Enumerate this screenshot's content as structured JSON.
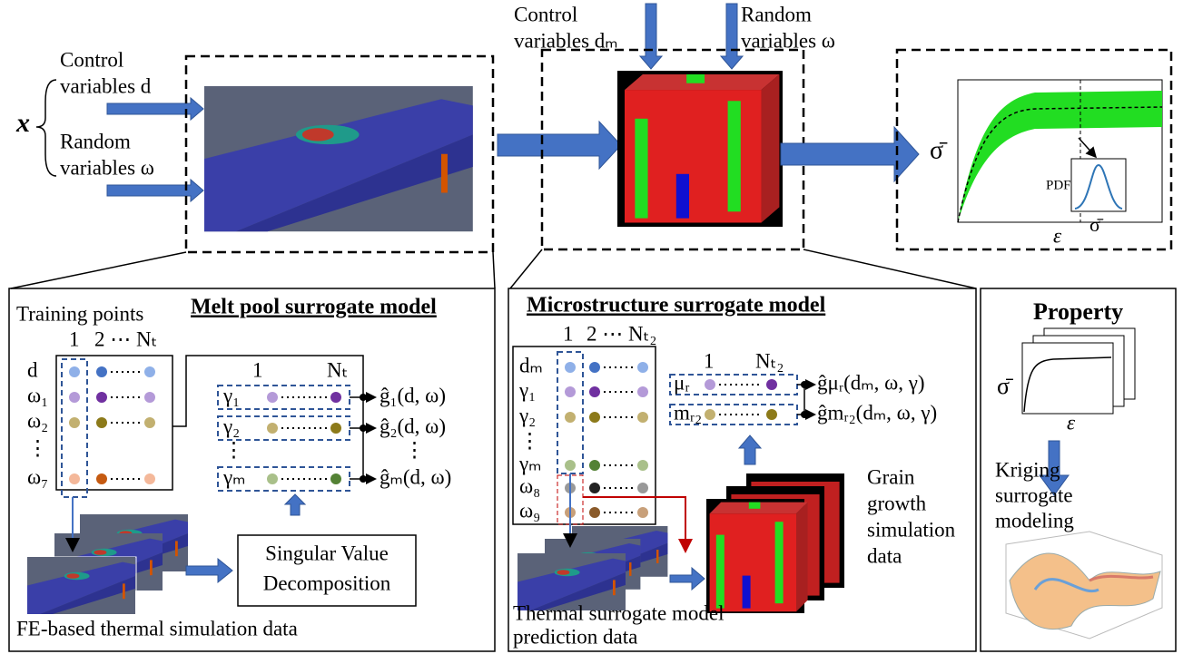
{
  "top": {
    "input_symbol": "x",
    "control_lines": [
      "Control",
      "variables d"
    ],
    "random_lines": [
      "Random",
      "variables ω"
    ],
    "micro_control_lines": [
      "Control",
      "variables dₘ"
    ],
    "micro_random_lines": [
      "Random",
      "variables ω"
    ],
    "property_plot": {
      "y_label": "σ̄",
      "x_label": "ε",
      "inset_y_label": "PDF",
      "inset_x_label": "σ̄"
    }
  },
  "melt_pool_panel": {
    "title": "Melt pool surrogate model",
    "training_points": "Training points",
    "column_headers": [
      "1",
      "2 ⋯ Nₜ"
    ],
    "row_labels": [
      "d",
      "ω₁",
      "ω₂",
      "⋮",
      "ω₇"
    ],
    "basis_headers": [
      "1",
      "Nₜ"
    ],
    "basis_labels": [
      "γ₁",
      "γ₂",
      "⋮",
      "γₘ"
    ],
    "outputs": [
      "ĝ₁(d, ω)",
      "ĝ₂(d, ω)",
      "⋮",
      "ĝₘ(d, ω)"
    ],
    "svd_lines": [
      "Singular Value",
      "Decomposition"
    ],
    "caption": "FE-based thermal simulation data"
  },
  "microstructure_panel": {
    "title": "Microstructure surrogate model",
    "column_headers": [
      "1",
      "2 ⋯ Nₜ₂"
    ],
    "row_labels": [
      "dₘ",
      "γ₁",
      "γ₂",
      "⋮",
      "γₘ",
      "ω₈",
      "ω₉"
    ],
    "basis_headers": [
      "1",
      "Nₜ₂"
    ],
    "basis_labels": [
      "μᵣ",
      "mᵣ₂"
    ],
    "outputs": [
      "ĝμᵣ(dₘ, ω, γ)",
      "ĝmᵣ₂(dₘ, ω, γ)"
    ],
    "grain_lines": [
      "Grain",
      "growth",
      "simulation",
      "data"
    ],
    "caption_lines": [
      "Thermal surrogate model",
      "prediction data"
    ]
  },
  "property_panel": {
    "title": "Property",
    "y_label": "σ̄",
    "x_label": "ε",
    "kriging_lines": [
      "Kriging",
      "surrogate",
      "modeling"
    ]
  }
}
